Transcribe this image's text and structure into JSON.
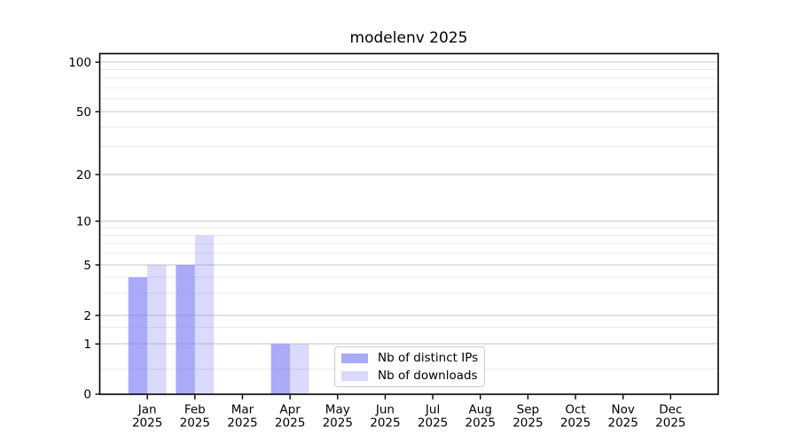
{
  "chart_data": {
    "type": "bar",
    "title": "modelenv 2025",
    "categories": [
      "Jan",
      "Feb",
      "Mar",
      "Apr",
      "May",
      "Jun",
      "Jul",
      "Aug",
      "Sep",
      "Oct",
      "Nov",
      "Dec"
    ],
    "category_year": "2025",
    "series": [
      {
        "name": "Nb of distinct IPs",
        "color": "rgba(120,120,245,0.63)",
        "values": [
          4,
          5,
          0,
          1,
          0,
          0,
          0,
          0,
          0,
          0,
          0,
          0
        ]
      },
      {
        "name": "Nb of downloads",
        "color": "rgba(120,120,245,0.27)",
        "values": [
          5,
          8,
          0,
          1,
          0,
          0,
          0,
          0,
          0,
          0,
          0,
          0
        ]
      }
    ],
    "y_ticks": [
      0,
      1,
      2,
      5,
      10,
      20,
      50,
      100
    ],
    "y_minor_ticks": [
      0.5,
      1.5,
      3,
      4,
      6,
      7,
      8,
      9,
      30,
      40,
      60,
      70,
      80,
      90
    ],
    "scale": "symlog",
    "ylim": [
      0,
      130
    ],
    "grid": "major+minor horizontal",
    "legend_position": "inside lower center",
    "colors": {
      "major_grid": "#c6c6c6",
      "minor_grid": "#ebebeb",
      "axis": "#000000",
      "text": "#000000",
      "background": "#ffffff"
    }
  }
}
